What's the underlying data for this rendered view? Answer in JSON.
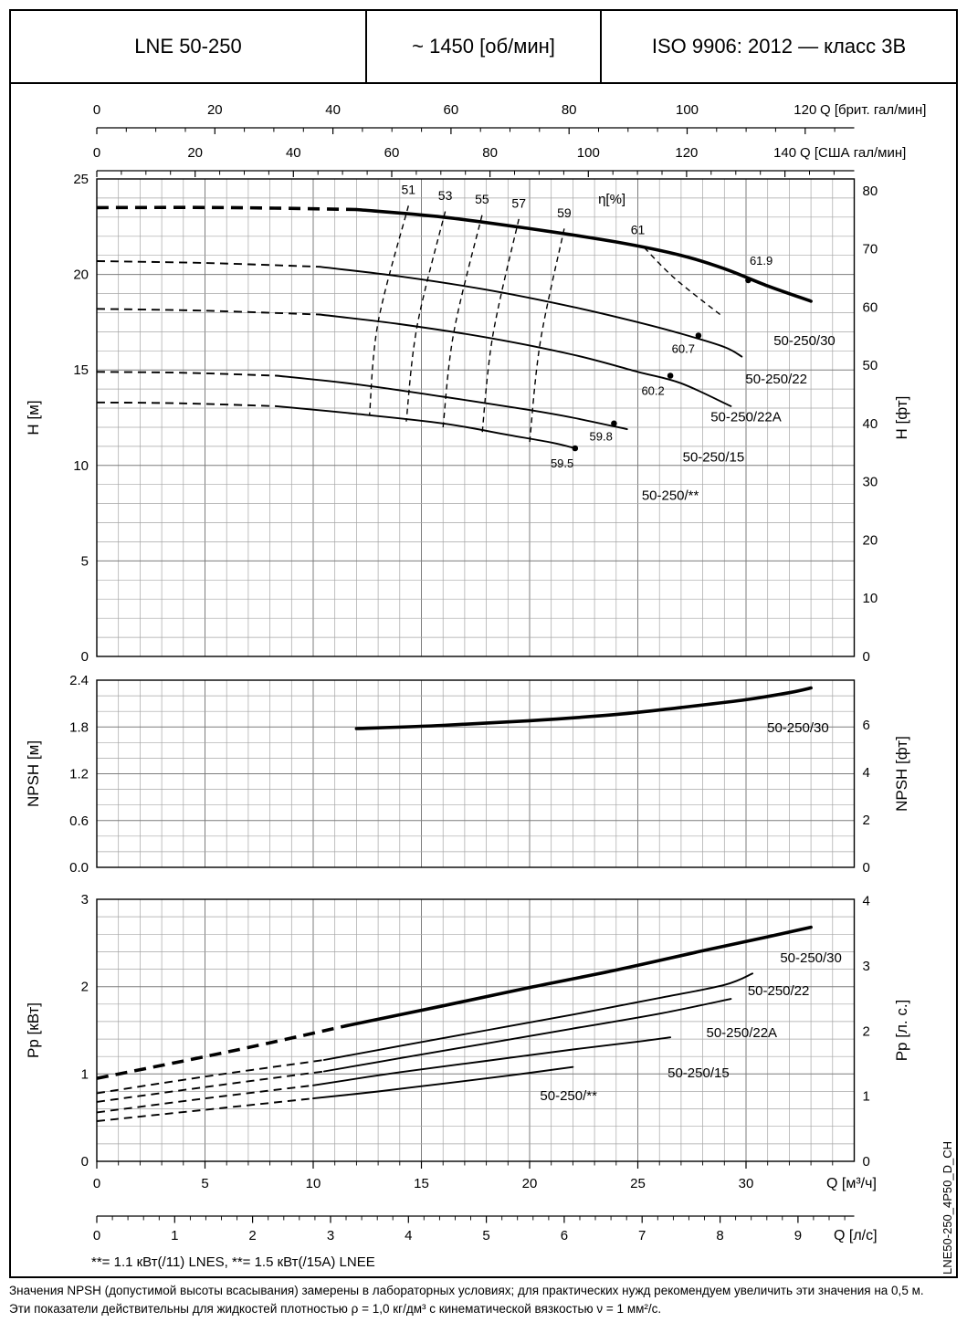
{
  "header": {
    "model": "LNE 50-250",
    "speed": "~ 1450 [об/мин]",
    "standard": "ISO 9906: 2012 — класс 3В"
  },
  "footnote": "**= 1.1 кВт(/11) LNES, **= 1.5 кВт(/15A) LNEE",
  "side_label": "LNE50-250_4P50_D_CH",
  "notes": [
    "Значения NPSH (допустимой высоты всасывания) замерены в лабораторных условиях; для практических нужд рекомендуем увеличить эти значения на 0,5 м.",
    "Эти показатели действительны для жидкостей плотностью ρ = 1,0 кг/дм³ с кинематической вязкостью ν = 1 мм²/с."
  ],
  "chart_data": {
    "type": "line",
    "x_axis": {
      "unit_imp_gpm": {
        "label": "Q [брит. гал/мин]",
        "ticks": [
          "0",
          "20",
          "40",
          "60",
          "80",
          "100",
          "120"
        ],
        "m3h_per_unit": 0.27277
      },
      "unit_us_gpm": {
        "label": "Q [США гал/мин]",
        "ticks": [
          "0",
          "20",
          "40",
          "60",
          "80",
          "100",
          "120",
          "140"
        ],
        "m3h_per_unit": 0.22712
      },
      "unit_m3h": {
        "label": "Q [м³/ч]",
        "ticks": [
          "0",
          "5",
          "10",
          "15",
          "20",
          "25",
          "30"
        ],
        "max": 35
      },
      "unit_ls": {
        "label": "Q [л/с]",
        "ticks": [
          "0",
          "1",
          "2",
          "3",
          "4",
          "5",
          "6",
          "7",
          "8",
          "9"
        ],
        "m3h_per_unit": 3.6
      }
    },
    "head": {
      "ylabel": "H [м]",
      "ylabel_right": "H [фт]",
      "ylim": [
        0,
        25
      ],
      "yticks": [
        "0",
        "5",
        "10",
        "15",
        "20",
        "25"
      ],
      "yticks_right": [
        "0",
        "10",
        "20",
        "30",
        "40",
        "50",
        "60",
        "70",
        "80"
      ],
      "ft_per_m": 3.2808,
      "eta_label": "η[%]",
      "eta_label_pos": [
        23.8,
        23.7
      ],
      "efficiency_lines": [
        {
          "label": "51",
          "points": [
            [
              14.4,
              23.6
            ],
            [
              13.0,
              17.5
            ],
            [
              12.6,
              12.6
            ]
          ],
          "label_pos": [
            14.4,
            24.2
          ]
        },
        {
          "label": "53",
          "points": [
            [
              16.1,
              23.3
            ],
            [
              14.8,
              17.3
            ],
            [
              14.3,
              12.3
            ]
          ],
          "label_pos": [
            16.1,
            23.9
          ]
        },
        {
          "label": "55",
          "points": [
            [
              17.8,
              23.1
            ],
            [
              16.5,
              17.0
            ],
            [
              16.0,
              12.0
            ]
          ],
          "label_pos": [
            17.8,
            23.7
          ]
        },
        {
          "label": "57",
          "points": [
            [
              19.5,
              22.9
            ],
            [
              18.3,
              16.8
            ],
            [
              17.8,
              11.6
            ]
          ],
          "label_pos": [
            19.5,
            23.5
          ]
        },
        {
          "label": "59",
          "points": [
            [
              21.6,
              22.4
            ],
            [
              20.5,
              16.5
            ],
            [
              20.0,
              11.2
            ]
          ],
          "label_pos": [
            21.6,
            23.0
          ]
        },
        {
          "label": "61",
          "points": [
            [
              25.3,
              21.4
            ],
            [
              26.7,
              19.8
            ],
            [
              28.8,
              17.9
            ]
          ],
          "label_pos": [
            25.0,
            22.1
          ]
        }
      ],
      "curves": [
        {
          "name": "50-250/30",
          "thick": true,
          "dashed": [
            [
              0,
              23.5
            ],
            [
              6,
              23.5
            ],
            [
              12,
              23.4
            ]
          ],
          "solid": [
            [
              12,
              23.4
            ],
            [
              16,
              23.0
            ],
            [
              20,
              22.4
            ],
            [
              24,
              21.7
            ],
            [
              27,
              21.0
            ],
            [
              29,
              20.3
            ],
            [
              31,
              19.4
            ],
            [
              33,
              18.6
            ]
          ],
          "bep": {
            "label": "61.9",
            "q": 30.1,
            "v": 19.7,
            "label_pos": [
              30.7,
              20.5
            ]
          },
          "label_pos": [
            32.7,
            16.3
          ]
        },
        {
          "name": "50-250/22",
          "dashed": [
            [
              0,
              20.7
            ],
            [
              5,
              20.6
            ],
            [
              10.3,
              20.4
            ]
          ],
          "solid": [
            [
              10.3,
              20.4
            ],
            [
              14,
              19.9
            ],
            [
              18,
              19.2
            ],
            [
              22,
              18.3
            ],
            [
              25,
              17.5
            ],
            [
              27,
              16.9
            ],
            [
              29,
              16.2
            ],
            [
              29.8,
              15.7
            ]
          ],
          "bep": {
            "label": "60.7",
            "q": 27.8,
            "v": 16.8,
            "label_pos": [
              27.1,
              15.9
            ]
          },
          "label_pos": [
            31.4,
            14.3
          ]
        },
        {
          "name": "50-250/22A",
          "dashed": [
            [
              0,
              18.2
            ],
            [
              5,
              18.1
            ],
            [
              10.3,
              17.9
            ]
          ],
          "solid": [
            [
              10.3,
              17.9
            ],
            [
              14,
              17.4
            ],
            [
              18,
              16.7
            ],
            [
              22,
              15.8
            ],
            [
              25,
              14.9
            ],
            [
              27,
              14.3
            ],
            [
              29.3,
              13.1
            ]
          ],
          "bep": {
            "label": "60.2",
            "q": 26.5,
            "v": 14.7,
            "label_pos": [
              25.7,
              13.7
            ]
          },
          "label_pos": [
            30.0,
            12.3
          ]
        },
        {
          "name": "50-250/15",
          "dashed": [
            [
              0,
              14.9
            ],
            [
              4,
              14.85
            ],
            [
              8.3,
              14.7
            ]
          ],
          "solid": [
            [
              8.3,
              14.7
            ],
            [
              12,
              14.25
            ],
            [
              16,
              13.6
            ],
            [
              20,
              12.9
            ],
            [
              22,
              12.5
            ],
            [
              24.5,
              11.9
            ]
          ],
          "bep": {
            "label": "59.8",
            "q": 23.9,
            "v": 12.2,
            "label_pos": [
              23.3,
              11.3
            ]
          },
          "label_pos": [
            28.5,
            10.2
          ]
        },
        {
          "name": "50-250/**",
          "dashed": [
            [
              0,
              13.3
            ],
            [
              4,
              13.25
            ],
            [
              8.3,
              13.1
            ]
          ],
          "solid": [
            [
              8.3,
              13.1
            ],
            [
              12,
              12.7
            ],
            [
              16,
              12.2
            ],
            [
              19,
              11.6
            ],
            [
              21,
              11.2
            ],
            [
              22.1,
              10.9
            ]
          ],
          "bep": {
            "label": "59.5",
            "q": 22.1,
            "v": 10.9,
            "label_pos": [
              21.5,
              9.9
            ]
          },
          "label_pos": [
            26.5,
            8.2
          ]
        }
      ]
    },
    "npsh": {
      "ylabel": "NPSH [м]",
      "ylabel_right": "NPSH [фт]",
      "ylim": [
        0,
        2.4
      ],
      "yticks": [
        "0.0",
        "0.6",
        "1.2",
        "1.8",
        "2.4"
      ],
      "yticks_right": [
        "0",
        "2",
        "4",
        "6"
      ],
      "ft_per_m": 3.2808,
      "curves": [
        {
          "name": "50-250/30",
          "thick": true,
          "solid": [
            [
              12,
              1.78
            ],
            [
              16,
              1.82
            ],
            [
              20,
              1.88
            ],
            [
              24,
              1.96
            ],
            [
              27,
              2.05
            ],
            [
              30,
              2.15
            ],
            [
              32,
              2.24
            ],
            [
              33,
              2.3
            ]
          ],
          "label_pos": [
            32.4,
            1.73
          ]
        }
      ]
    },
    "power": {
      "ylabel": "Pp [кВт]",
      "ylabel_right": "Pp [л. с.]",
      "ylim": [
        0,
        3
      ],
      "yticks": [
        "0",
        "1",
        "2",
        "3"
      ],
      "yticks_right": [
        "0",
        "1",
        "2",
        "3",
        "4"
      ],
      "hp_per_kw": 1.341,
      "curves": [
        {
          "name": "50-250/30",
          "thick": true,
          "dashed": [
            [
              0,
              0.95
            ],
            [
              6,
              1.25
            ],
            [
              11.5,
              1.55
            ]
          ],
          "solid": [
            [
              11.5,
              1.55
            ],
            [
              16,
              1.78
            ],
            [
              20,
              1.99
            ],
            [
              24,
              2.19
            ],
            [
              28,
              2.41
            ],
            [
              31,
              2.57
            ],
            [
              33,
              2.68
            ]
          ],
          "label_pos": [
            33.0,
            2.28
          ]
        },
        {
          "name": "50-250/22",
          "dashed": [
            [
              0,
              0.78
            ],
            [
              5,
              0.97
            ],
            [
              10.5,
              1.16
            ]
          ],
          "solid": [
            [
              10.5,
              1.16
            ],
            [
              14,
              1.32
            ],
            [
              18,
              1.5
            ],
            [
              22,
              1.68
            ],
            [
              26,
              1.87
            ],
            [
              29,
              2.02
            ],
            [
              30.3,
              2.15
            ]
          ],
          "label_pos": [
            31.5,
            1.9
          ]
        },
        {
          "name": "50-250/22A",
          "dashed": [
            [
              0,
              0.68
            ],
            [
              5,
              0.85
            ],
            [
              10.5,
              1.03
            ]
          ],
          "solid": [
            [
              10.5,
              1.03
            ],
            [
              14,
              1.18
            ],
            [
              18,
              1.35
            ],
            [
              22,
              1.52
            ],
            [
              26,
              1.69
            ],
            [
              29.3,
              1.86
            ]
          ],
          "label_pos": [
            29.8,
            1.42
          ]
        },
        {
          "name": "50-250/15",
          "dashed": [
            [
              0,
              0.56
            ],
            [
              5,
              0.72
            ],
            [
              10,
              0.87
            ]
          ],
          "solid": [
            [
              10,
              0.87
            ],
            [
              14,
              1.02
            ],
            [
              18,
              1.15
            ],
            [
              22,
              1.28
            ],
            [
              25,
              1.37
            ],
            [
              26.5,
              1.42
            ]
          ],
          "label_pos": [
            27.8,
            0.96
          ]
        },
        {
          "name": "50-250/**",
          "dashed": [
            [
              0,
              0.46
            ],
            [
              5,
              0.59
            ],
            [
              10,
              0.72
            ]
          ],
          "solid": [
            [
              10,
              0.72
            ],
            [
              13,
              0.8
            ],
            [
              16,
              0.89
            ],
            [
              19,
              0.98
            ],
            [
              22,
              1.08
            ]
          ],
          "label_pos": [
            21.8,
            0.7
          ]
        }
      ]
    }
  }
}
